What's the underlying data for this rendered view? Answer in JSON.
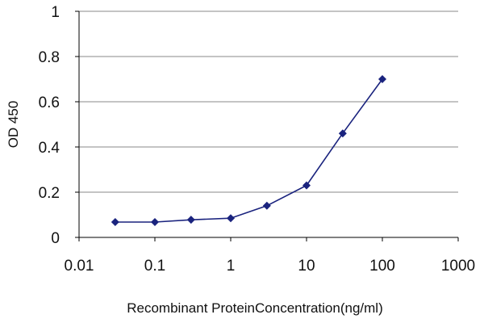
{
  "chart_data": {
    "type": "line",
    "title": "",
    "xlabel": "Recombinant ProteinConcentration(ng/ml)",
    "ylabel": "OD 450",
    "x_scale": "log",
    "xlim": [
      0.01,
      1000
    ],
    "ylim": [
      0,
      1
    ],
    "x_tick_labels": [
      "0.01",
      "0.1",
      "1",
      "10",
      "100",
      "1000"
    ],
    "y_tick_labels": [
      "0",
      "0.2",
      "0.4",
      "0.6",
      "0.8",
      "1"
    ],
    "grid": "horizontal",
    "legend": "none",
    "series": [
      {
        "x": [
          0.03,
          0.1,
          0.3,
          1,
          3,
          10,
          30,
          100
        ],
        "y": [
          0.068,
          0.068,
          0.078,
          0.085,
          0.14,
          0.23,
          0.46,
          0.7
        ],
        "color": "#1a237e",
        "marker": "diamond"
      }
    ]
  }
}
